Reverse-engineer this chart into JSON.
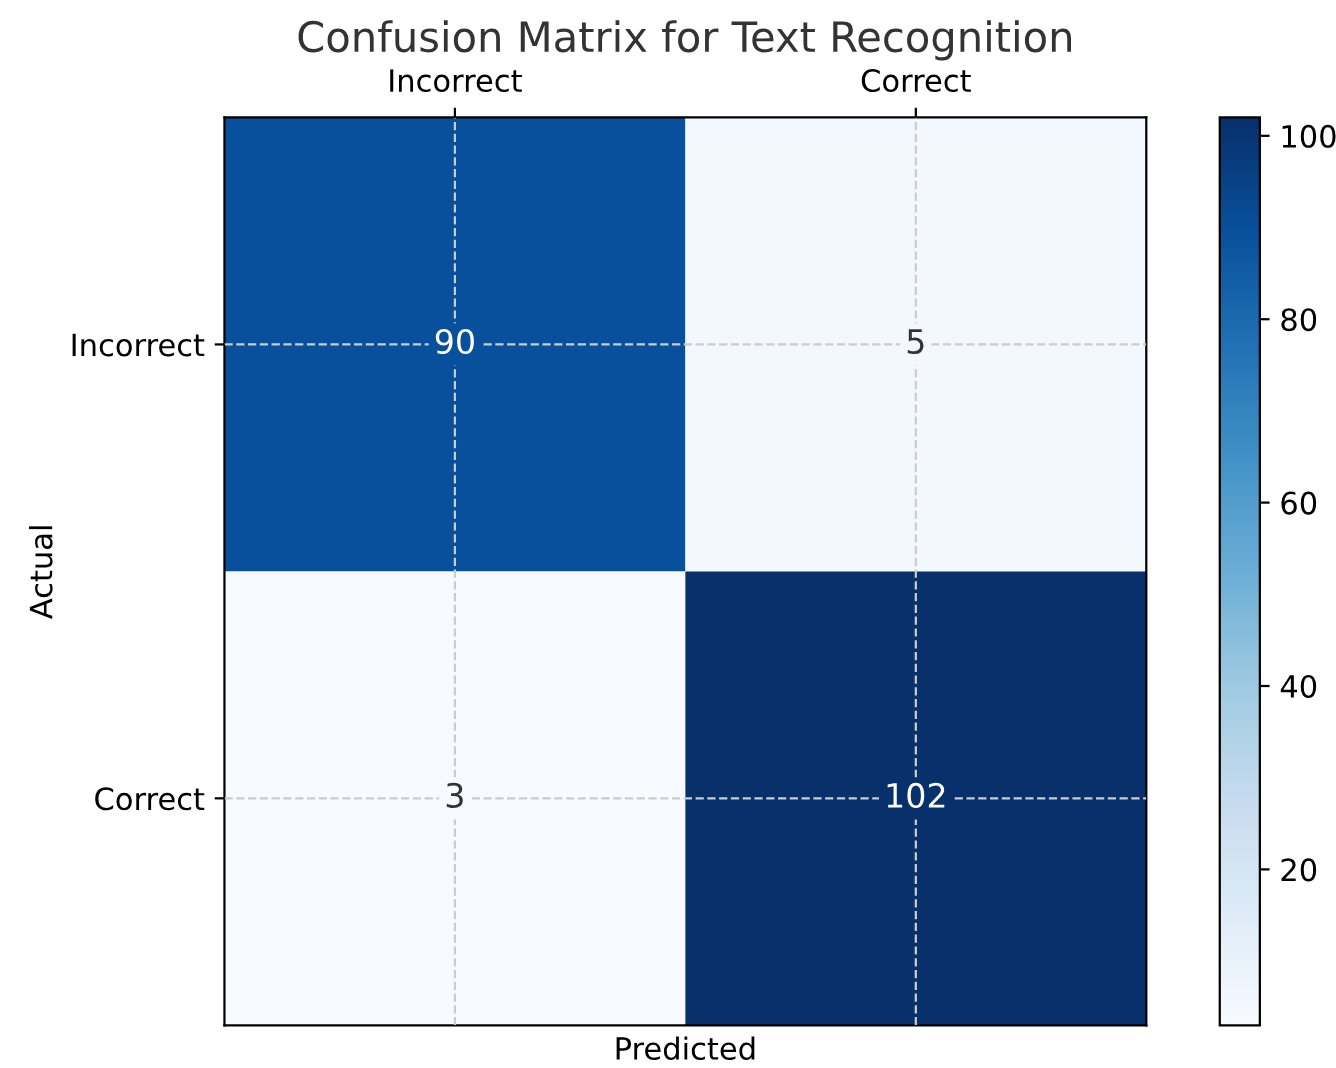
{
  "chart_data": {
    "type": "heatmap",
    "title": "Confusion Matrix for Text Recognition",
    "xlabel": "Predicted",
    "ylabel": "Actual",
    "categories": [
      "Incorrect",
      "Correct"
    ],
    "y_categories": [
      "Incorrect",
      "Correct"
    ],
    "cells": [
      [
        90,
        5
      ],
      [
        3,
        102
      ]
    ],
    "clim": [
      3,
      102
    ],
    "cticks": [
      20,
      40,
      60,
      80,
      100
    ],
    "data_labels": true,
    "grid": true
  }
}
